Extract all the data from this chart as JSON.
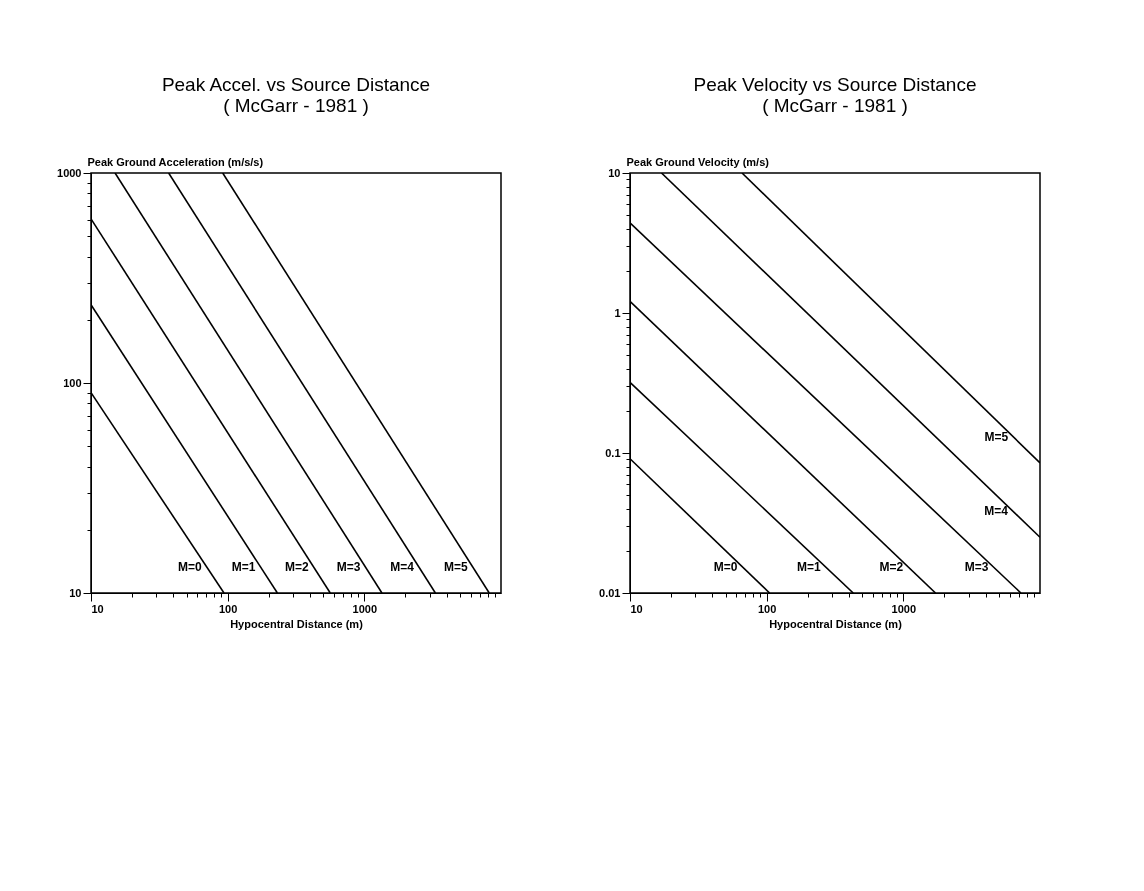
{
  "chart_data": [
    {
      "type": "line",
      "title": "Peak Accel. vs Source Distance",
      "subtitle": "( McGarr - 1981 )",
      "xlabel": "Hypocentral Distance (m)",
      "ylabel": "Peak Ground Acceleration (m/s/s)",
      "log": "xy",
      "grid": false,
      "line_style": "solid",
      "xlim": [
        10,
        10000
      ],
      "ylim": [
        10,
        1000
      ],
      "xticks": [
        10,
        {
          "value": 20,
          "label": null
        },
        {
          "value": 30,
          "label": null
        },
        {
          "value": 40,
          "label": null
        },
        {
          "value": 50,
          "label": null
        },
        {
          "value": 60,
          "label": null
        },
        {
          "value": 70,
          "label": null
        },
        {
          "value": 80,
          "label": null
        },
        {
          "value": 90,
          "label": null
        },
        100,
        {
          "value": 200,
          "label": null
        },
        {
          "value": 300,
          "label": null
        },
        {
          "value": 400,
          "label": null
        },
        {
          "value": 500,
          "label": null
        },
        {
          "value": 600,
          "label": null
        },
        {
          "value": 700,
          "label": null
        },
        {
          "value": 800,
          "label": null
        },
        {
          "value": 900,
          "label": null
        },
        1000,
        {
          "value": 2000,
          "label": null
        },
        {
          "value": 3000,
          "label": null
        },
        {
          "value": 4000,
          "label": null
        },
        {
          "value": 5000,
          "label": null
        },
        {
          "value": 6000,
          "label": null
        },
        {
          "value": 7000,
          "label": null
        },
        {
          "value": 8000,
          "label": null
        },
        {
          "value": 9000,
          "label": null
        }
      ],
      "yticks": [
        10,
        {
          "value": 20,
          "label": null
        },
        {
          "value": 30,
          "label": null
        },
        {
          "value": 40,
          "label": null
        },
        {
          "value": 50,
          "label": null
        },
        {
          "value": 60,
          "label": null
        },
        {
          "value": 70,
          "label": null
        },
        {
          "value": 80,
          "label": null
        },
        {
          "value": 90,
          "label": null
        },
        100,
        {
          "value": 200,
          "label": null
        },
        {
          "value": 300,
          "label": null
        },
        {
          "value": 400,
          "label": null
        },
        {
          "value": 500,
          "label": null
        },
        {
          "value": 600,
          "label": null
        },
        {
          "value": 700,
          "label": null
        },
        {
          "value": 800,
          "label": null
        },
        {
          "value": 900,
          "label": null
        },
        1000
      ],
      "series": [
        {
          "name": "M=0",
          "color": "#000000",
          "x": [
            10,
            94
          ],
          "values": [
            90,
            10
          ]
        },
        {
          "name": "M=1",
          "color": "#000000",
          "x": [
            10,
            231
          ],
          "values": [
            236,
            10
          ]
        },
        {
          "name": "M=2",
          "color": "#000000",
          "x": [
            10,
            563
          ],
          "values": [
            605,
            10
          ]
        },
        {
          "name": "M=3",
          "color": "#000000",
          "x": [
            15,
            1345
          ],
          "values": [
            1000,
            10
          ]
        },
        {
          "name": "M=4",
          "color": "#000000",
          "x": [
            37,
            3310
          ],
          "values": [
            1000,
            10
          ]
        },
        {
          "name": "M=5",
          "color": "#000000",
          "x": [
            92,
            8200
          ],
          "values": [
            1000,
            10
          ]
        }
      ]
    },
    {
      "type": "line",
      "title": "Peak Velocity vs Source Distance",
      "subtitle": "( McGarr - 1981 )",
      "xlabel": "Hypocentral Distance (m)",
      "ylabel": "Peak Ground Velocity (m/s)",
      "log": "xy",
      "grid": false,
      "line_style": "solid",
      "xlim": [
        10,
        10000
      ],
      "ylim": [
        0.01,
        10
      ],
      "xticks": [
        10,
        {
          "value": 20,
          "label": null
        },
        {
          "value": 30,
          "label": null
        },
        {
          "value": 40,
          "label": null
        },
        {
          "value": 50,
          "label": null
        },
        {
          "value": 60,
          "label": null
        },
        {
          "value": 70,
          "label": null
        },
        {
          "value": 80,
          "label": null
        },
        {
          "value": 90,
          "label": null
        },
        100,
        {
          "value": 200,
          "label": null
        },
        {
          "value": 300,
          "label": null
        },
        {
          "value": 400,
          "label": null
        },
        {
          "value": 500,
          "label": null
        },
        {
          "value": 600,
          "label": null
        },
        {
          "value": 700,
          "label": null
        },
        {
          "value": 800,
          "label": null
        },
        {
          "value": 900,
          "label": null
        },
        1000,
        {
          "value": 2000,
          "label": null
        },
        {
          "value": 3000,
          "label": null
        },
        {
          "value": 4000,
          "label": null
        },
        {
          "value": 5000,
          "label": null
        },
        {
          "value": 6000,
          "label": null
        },
        {
          "value": 7000,
          "label": null
        },
        {
          "value": 8000,
          "label": null
        },
        {
          "value": 9000,
          "label": null
        }
      ],
      "yticks": [
        0.01,
        {
          "value": 0.02,
          "label": null
        },
        {
          "value": 0.03,
          "label": null
        },
        {
          "value": 0.04,
          "label": null
        },
        {
          "value": 0.05,
          "label": null
        },
        {
          "value": 0.06,
          "label": null
        },
        {
          "value": 0.07,
          "label": null
        },
        {
          "value": 0.08,
          "label": null
        },
        {
          "value": 0.09,
          "label": null
        },
        0.1,
        {
          "value": 0.2,
          "label": null
        },
        {
          "value": 0.3,
          "label": null
        },
        {
          "value": 0.4,
          "label": null
        },
        {
          "value": 0.5,
          "label": null
        },
        {
          "value": 0.6,
          "label": null
        },
        {
          "value": 0.7,
          "label": null
        },
        {
          "value": 0.8,
          "label": null
        },
        {
          "value": 0.9,
          "label": null
        },
        1,
        {
          "value": 2,
          "label": null
        },
        {
          "value": 3,
          "label": null
        },
        {
          "value": 4,
          "label": null
        },
        {
          "value": 5,
          "label": null
        },
        {
          "value": 6,
          "label": null
        },
        {
          "value": 7,
          "label": null
        },
        {
          "value": 8,
          "label": null
        },
        {
          "value": 9,
          "label": null
        },
        10
      ],
      "series": [
        {
          "name": "M=0",
          "color": "#000000",
          "x": [
            10,
            105
          ],
          "values": [
            0.091,
            0.01
          ]
        },
        {
          "name": "M=1",
          "color": "#000000",
          "x": [
            10,
            430
          ],
          "values": [
            0.32,
            0.01
          ]
        },
        {
          "name": "M=2",
          "color": "#000000",
          "x": [
            10,
            1720
          ],
          "values": [
            1.21,
            0.01
          ]
        },
        {
          "name": "M=3",
          "color": "#000000",
          "x": [
            10,
            7250
          ],
          "values": [
            4.4,
            0.01
          ]
        },
        {
          "name": "M=4",
          "color": "#000000",
          "x": [
            17,
            10000
          ],
          "values": [
            10,
            0.025
          ]
        },
        {
          "name": "M=5",
          "color": "#000000",
          "x": [
            66,
            10000
          ],
          "values": [
            10,
            0.085
          ]
        }
      ]
    }
  ]
}
